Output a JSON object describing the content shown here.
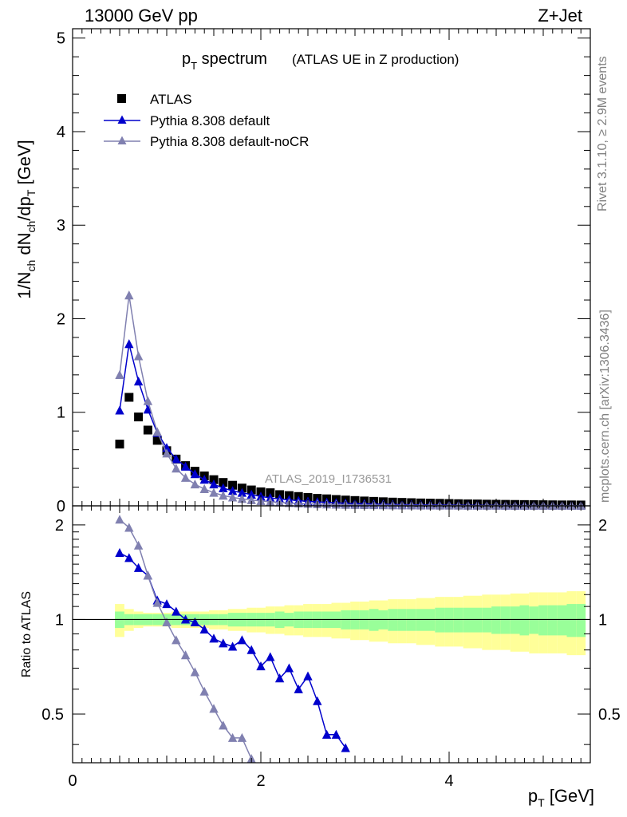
{
  "header": {
    "energy_label": "13000 GeV pp",
    "process_label": "Z+Jet",
    "title_main": "p",
    "title_sub": "T",
    "title_rest": " spectrum",
    "title_paren": "(ATLAS UE in Z production)",
    "analysis_id": "ATLAS_2019_I1736531",
    "side_rivet": "Rivet 3.1.10, ≥ 2.9M events",
    "side_mcplots": "mcplots.cern.ch [arXiv:1306.3436]"
  },
  "colors": {
    "atlas": "#000000",
    "pythia_default": "#0000cc",
    "pythia_nocr": "#8080b0",
    "band_inner": "#99ff99",
    "band_outer": "#ffff99"
  },
  "chart_data": [
    {
      "type": "scatter",
      "panel": "main",
      "title": "pT spectrum (ATLAS UE in Z production)",
      "xlabel": "pT [GeV]",
      "ylabel": "1/Nch dNch/dpT [GeV]",
      "xlim": [
        0,
        5.5
      ],
      "ylim": [
        0,
        5.1
      ],
      "yticks": [
        "0",
        "1",
        "2",
        "3",
        "4",
        "5"
      ],
      "legend_position": "top-left",
      "series": [
        {
          "name": "ATLAS",
          "marker": "square",
          "x": [
            0.5,
            0.6,
            0.7,
            0.8,
            0.9,
            1.0,
            1.1,
            1.2,
            1.3,
            1.4,
            1.5,
            1.6,
            1.7,
            1.8,
            1.9,
            2.0,
            2.1,
            2.2,
            2.3,
            2.4,
            2.5,
            2.6,
            2.7,
            2.8,
            2.9,
            3.0,
            3.1,
            3.2,
            3.3,
            3.4,
            3.5,
            3.6,
            3.7,
            3.8,
            3.9,
            4.0,
            4.1,
            4.2,
            4.3,
            4.4,
            4.5,
            4.6,
            4.7,
            4.8,
            4.9,
            5.0,
            5.1,
            5.2,
            5.3,
            5.4
          ],
          "y": [
            0.66,
            1.16,
            0.95,
            0.81,
            0.7,
            0.59,
            0.5,
            0.43,
            0.37,
            0.32,
            0.28,
            0.25,
            0.22,
            0.19,
            0.17,
            0.15,
            0.14,
            0.12,
            0.11,
            0.1,
            0.09,
            0.08,
            0.075,
            0.068,
            0.062,
            0.057,
            0.052,
            0.048,
            0.044,
            0.04,
            0.037,
            0.034,
            0.031,
            0.029,
            0.027,
            0.025,
            0.023,
            0.021,
            0.02,
            0.018,
            0.017,
            0.016,
            0.015,
            0.014,
            0.013,
            0.012,
            0.011,
            0.01,
            0.01,
            0.009
          ]
        },
        {
          "name": "Pythia 8.308 default",
          "marker": "triangle",
          "x": [
            0.5,
            0.6,
            0.7,
            0.8,
            0.9,
            1.0,
            1.1,
            1.2,
            1.3,
            1.4,
            1.5,
            1.6,
            1.7,
            1.8,
            1.9,
            2.0,
            2.1,
            2.2,
            2.3,
            2.4,
            2.5,
            2.6,
            2.7,
            2.8,
            2.9,
            3.0,
            3.1,
            3.2,
            3.3,
            3.4,
            3.5,
            3.6,
            3.7,
            3.8,
            3.9,
            4.0,
            4.1,
            4.2,
            4.3,
            4.4,
            4.5,
            4.6,
            4.7,
            4.8,
            4.9,
            5.0,
            5.1,
            5.2,
            5.3,
            5.4
          ],
          "y": [
            1.02,
            1.73,
            1.33,
            1.03,
            0.78,
            0.62,
            0.5,
            0.42,
            0.34,
            0.28,
            0.23,
            0.19,
            0.16,
            0.14,
            0.12,
            0.1,
            0.085,
            0.074,
            0.064,
            0.055,
            0.048,
            0.042,
            0.037,
            0.032,
            0.028,
            0.025,
            0.022,
            0.019,
            0.017,
            0.015,
            0.013,
            0.012,
            0.011,
            0.01,
            0.009,
            0.008,
            0.007,
            0.006,
            0.006,
            0.005,
            0.005,
            0.004,
            0.004,
            0.004,
            0.003,
            0.003,
            0.003,
            0.003,
            0.002,
            0.002
          ]
        },
        {
          "name": "Pythia 8.308 default-noCR",
          "marker": "triangle",
          "x": [
            0.5,
            0.6,
            0.7,
            0.8,
            0.9,
            1.0,
            1.1,
            1.2,
            1.3,
            1.4,
            1.5,
            1.6,
            1.7,
            1.8,
            1.9,
            2.0,
            2.1,
            2.2,
            2.3,
            2.4,
            2.5,
            2.6,
            2.7,
            2.8,
            2.9,
            3.0,
            3.1,
            3.2,
            3.3,
            3.4,
            3.5,
            3.6,
            3.7,
            3.8,
            3.9,
            4.0,
            4.1,
            4.2,
            4.3,
            4.4,
            4.5,
            4.6,
            4.7,
            4.8,
            4.9,
            5.0,
            5.1,
            5.2,
            5.3,
            5.4
          ],
          "y": [
            1.4,
            2.25,
            1.6,
            1.12,
            0.79,
            0.56,
            0.4,
            0.3,
            0.23,
            0.18,
            0.14,
            0.11,
            0.09,
            0.075,
            0.062,
            0.052,
            0.044,
            0.037,
            0.031,
            0.026,
            0.022,
            0.019,
            0.016,
            0.014,
            0.012,
            0.01,
            0.009,
            0.008,
            0.007,
            0.006,
            0.005,
            0.005,
            0.004,
            0.004,
            0.003,
            0.003,
            0.003,
            0.002,
            0.002,
            0.002,
            0.002,
            0.002,
            0.001,
            0.001,
            0.001,
            0.001,
            0.001,
            0.001,
            0.001,
            0.001
          ]
        }
      ]
    },
    {
      "type": "line",
      "panel": "ratio",
      "xlabel": "pT [GeV]",
      "ylabel": "Ratio to ATLAS",
      "xlim": [
        0,
        5.5
      ],
      "ylim": [
        0.35,
        2.3
      ],
      "yticks": [
        "0.5",
        "1",
        "2"
      ],
      "xticks": [
        "0",
        "2",
        "4"
      ],
      "reference_line": 1,
      "band": {
        "x": [
          0.5,
          0.6,
          0.7,
          0.8,
          0.9,
          1.0,
          1.1,
          1.2,
          1.3,
          1.4,
          1.5,
          1.6,
          1.7,
          1.8,
          1.9,
          2.0,
          2.1,
          2.2,
          2.3,
          2.4,
          2.5,
          2.6,
          2.7,
          2.8,
          2.9,
          3.0,
          3.1,
          3.2,
          3.3,
          3.4,
          3.5,
          3.6,
          3.7,
          3.8,
          3.9,
          4.0,
          4.1,
          4.2,
          4.3,
          4.4,
          4.5,
          4.6,
          4.7,
          4.8,
          4.9,
          5.0,
          5.1,
          5.2,
          5.3,
          5.4
        ],
        "inner": [
          0.06,
          0.04,
          0.04,
          0.04,
          0.04,
          0.04,
          0.04,
          0.04,
          0.04,
          0.04,
          0.04,
          0.04,
          0.05,
          0.05,
          0.05,
          0.05,
          0.05,
          0.06,
          0.05,
          0.06,
          0.06,
          0.06,
          0.06,
          0.06,
          0.07,
          0.07,
          0.07,
          0.08,
          0.07,
          0.08,
          0.08,
          0.08,
          0.08,
          0.08,
          0.09,
          0.09,
          0.09,
          0.09,
          0.09,
          0.09,
          0.1,
          0.1,
          0.1,
          0.11,
          0.1,
          0.11,
          0.11,
          0.11,
          0.12,
          0.12
        ],
        "outer": [
          0.12,
          0.08,
          0.06,
          0.05,
          0.05,
          0.05,
          0.06,
          0.06,
          0.06,
          0.06,
          0.07,
          0.07,
          0.08,
          0.08,
          0.09,
          0.09,
          0.1,
          0.1,
          0.11,
          0.11,
          0.12,
          0.12,
          0.12,
          0.13,
          0.13,
          0.14,
          0.14,
          0.15,
          0.15,
          0.16,
          0.16,
          0.16,
          0.17,
          0.17,
          0.18,
          0.18,
          0.18,
          0.19,
          0.19,
          0.2,
          0.2,
          0.2,
          0.21,
          0.21,
          0.22,
          0.22,
          0.22,
          0.22,
          0.23,
          0.23
        ]
      },
      "series": [
        {
          "name": "Pythia 8.308 default",
          "x": [
            0.5,
            0.6,
            0.7,
            0.8,
            0.9,
            1.0,
            1.1,
            1.2,
            1.3,
            1.4,
            1.5,
            1.6,
            1.7,
            1.8,
            1.9,
            2.0,
            2.1,
            2.2,
            2.3,
            2.4,
            2.5,
            2.6,
            2.7,
            2.8,
            2.9
          ],
          "y": [
            1.63,
            1.57,
            1.46,
            1.38,
            1.15,
            1.12,
            1.06,
            1.0,
            0.98,
            0.93,
            0.87,
            0.84,
            0.82,
            0.86,
            0.8,
            0.71,
            0.76,
            0.65,
            0.7,
            0.6,
            0.66,
            0.55,
            0.43,
            0.43,
            0.39
          ]
        },
        {
          "name": "Pythia 8.308 default-noCR",
          "x": [
            0.5,
            0.6,
            0.7,
            0.8,
            0.9,
            1.0,
            1.1,
            1.2,
            1.3,
            1.4,
            1.5,
            1.6,
            1.7,
            1.8,
            1.9
          ],
          "y": [
            2.08,
            1.96,
            1.72,
            1.38,
            1.13,
            0.98,
            0.86,
            0.77,
            0.68,
            0.59,
            0.52,
            0.46,
            0.42,
            0.42,
            0.36
          ]
        }
      ]
    }
  ]
}
